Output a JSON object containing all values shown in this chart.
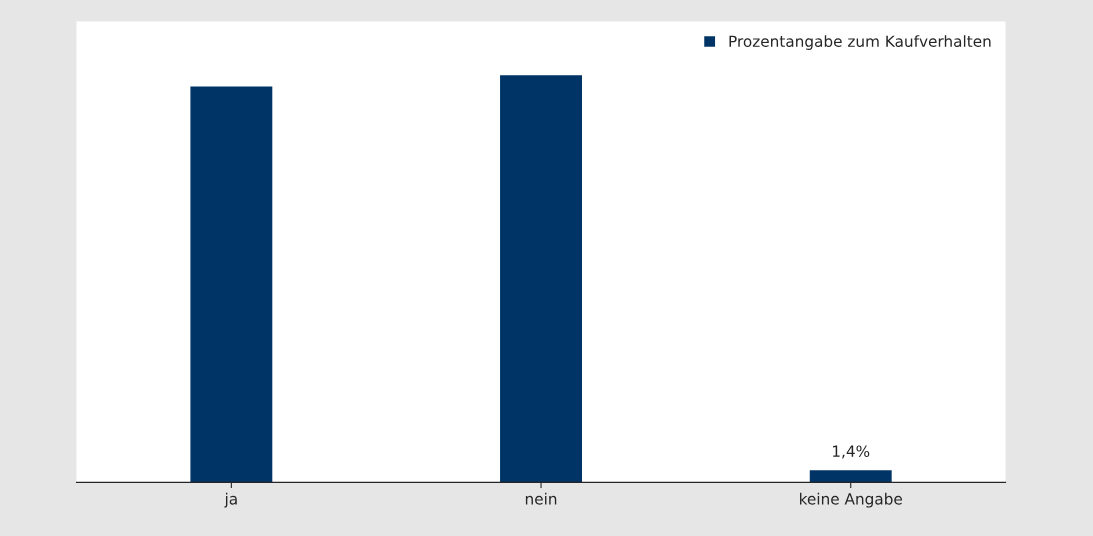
{
  "chart_data": {
    "type": "bar",
    "categories": [
      "ja",
      "nein",
      "keine Angabe"
    ],
    "series": [
      {
        "name": "Prozentangabe zum Kaufverhalten",
        "color": "#003366",
        "values": [
          48.6,
          50.0,
          1.4
        ],
        "value_labels": [
          null,
          null,
          "1,4%"
        ]
      }
    ],
    "legend": "top right",
    "grid": false
  }
}
